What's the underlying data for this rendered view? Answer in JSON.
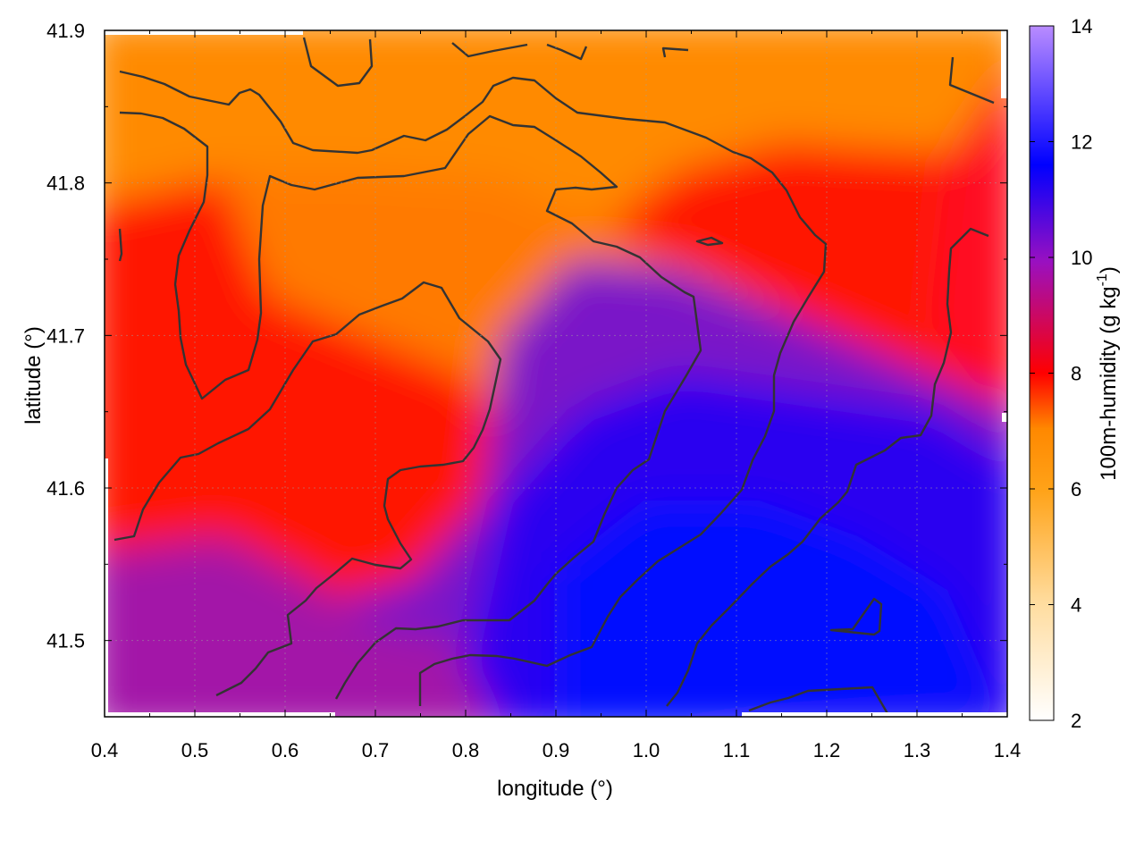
{
  "chart_data": {
    "type": "heatmap",
    "xlabel": "longitude (°)",
    "ylabel": "latitude (°)",
    "colorbar_label_main": "100m-humidity (g kg",
    "colorbar_label_sup": "-1",
    "colorbar_label_close": ")",
    "xlim": [
      0.4,
      1.4
    ],
    "ylim": [
      41.45,
      41.9
    ],
    "x_ticks": [
      "0.4",
      "0.5",
      "0.6",
      "0.7",
      "0.8",
      "0.9",
      "1.0",
      "1.1",
      "1.2",
      "1.3",
      "1.4"
    ],
    "y_ticks": [
      "41.5",
      "41.6",
      "41.7",
      "41.8",
      "41.9"
    ],
    "colorbar_range": [
      2,
      14
    ],
    "colorbar_ticks": [
      "2",
      "4",
      "6",
      "8",
      "10",
      "12",
      "14"
    ],
    "grid": true,
    "colormap": [
      "#ffffff",
      "#ffdc9e",
      "#ffa319",
      "#ff8800",
      "#ff0000",
      "#9a10c0",
      "#0000ff",
      "#b98cff"
    ],
    "contour_color": "#333333",
    "field_samples": [
      {
        "lon": 0.45,
        "lat": 41.88,
        "humidity": 6.8
      },
      {
        "lon": 0.8,
        "lat": 41.88,
        "humidity": 6.3
      },
      {
        "lon": 1.2,
        "lat": 41.88,
        "humidity": 6.0
      },
      {
        "lon": 1.37,
        "lat": 41.83,
        "humidity": 8.0
      },
      {
        "lon": 0.45,
        "lat": 41.75,
        "humidity": 7.8
      },
      {
        "lon": 0.7,
        "lat": 41.72,
        "humidity": 7.3
      },
      {
        "lon": 0.95,
        "lat": 41.72,
        "humidity": 9.0
      },
      {
        "lon": 1.2,
        "lat": 41.75,
        "humidity": 8.2
      },
      {
        "lon": 0.5,
        "lat": 41.6,
        "humidity": 8.0
      },
      {
        "lon": 0.75,
        "lat": 41.6,
        "humidity": 7.6
      },
      {
        "lon": 0.95,
        "lat": 41.58,
        "humidity": 10.5
      },
      {
        "lon": 1.25,
        "lat": 41.6,
        "humidity": 10.2
      },
      {
        "lon": 0.45,
        "lat": 41.5,
        "humidity": 9.3
      },
      {
        "lon": 0.8,
        "lat": 41.5,
        "humidity": 10.8
      },
      {
        "lon": 1.05,
        "lat": 41.47,
        "humidity": 11.5
      },
      {
        "lon": 1.35,
        "lat": 41.48,
        "humidity": 10.4
      }
    ]
  }
}
